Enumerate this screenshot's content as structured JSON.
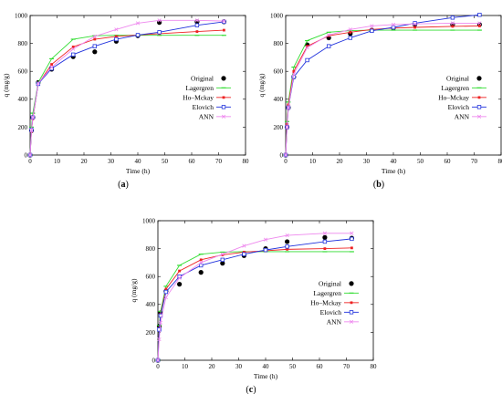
{
  "chart_data": [
    {
      "type": "line",
      "caption": "(a)",
      "xlabel": "Time (h)",
      "ylabel": "q (mg/g)",
      "xlim": [
        0,
        80
      ],
      "ylim": [
        0,
        1000
      ],
      "xticks": [
        0,
        10,
        20,
        30,
        40,
        50,
        60,
        70,
        80
      ],
      "yticks": [
        0,
        200,
        400,
        600,
        800,
        1000
      ],
      "grid": false,
      "legend": "right",
      "series": [
        {
          "name": "Original",
          "style": "points",
          "color": "#000000",
          "x": [
            0,
            0.5,
            1,
            3,
            8,
            16,
            24,
            32,
            40,
            48,
            62,
            72
          ],
          "y": [
            0,
            175,
            270,
            520,
            615,
            705,
            740,
            815,
            855,
            950,
            955,
            955
          ]
        },
        {
          "name": "Lagergren",
          "style": "line",
          "color": "#33dd33",
          "x": [
            0,
            0.5,
            1,
            3,
            8,
            16,
            24,
            32,
            40,
            48,
            62,
            72
          ],
          "y": [
            0,
            200,
            300,
            520,
            690,
            830,
            855,
            858,
            858,
            858,
            858,
            858
          ]
        },
        {
          "name": "Ho–Mckay",
          "style": "line",
          "color": "#ee2222",
          "x": [
            0,
            0.5,
            1,
            3,
            8,
            16,
            24,
            32,
            40,
            48,
            62,
            72
          ],
          "y": [
            0,
            170,
            260,
            510,
            650,
            775,
            830,
            850,
            860,
            870,
            885,
            895
          ]
        },
        {
          "name": "Elovich",
          "style": "line",
          "color": "#2233dd",
          "x": [
            0,
            0.5,
            1,
            3,
            8,
            16,
            24,
            32,
            40,
            48,
            62,
            72
          ],
          "y": [
            0,
            180,
            270,
            510,
            620,
            720,
            780,
            830,
            860,
            880,
            930,
            955
          ]
        },
        {
          "name": "ANN",
          "style": "line",
          "color": "#ee88ee",
          "x": [
            0,
            0.5,
            1,
            3,
            8,
            16,
            24,
            32,
            40,
            48,
            62,
            72
          ],
          "y": [
            0,
            175,
            270,
            515,
            630,
            760,
            850,
            900,
            945,
            965,
            965,
            960
          ]
        }
      ]
    },
    {
      "type": "line",
      "caption": "(b)",
      "xlabel": "Time (h)",
      "ylabel": "q (mg/g)",
      "xlim": [
        0,
        80
      ],
      "ylim": [
        0,
        1000
      ],
      "xticks": [
        0,
        10,
        20,
        30,
        40,
        50,
        60,
        70,
        80
      ],
      "yticks": [
        0,
        200,
        400,
        600,
        800,
        1000
      ],
      "grid": false,
      "legend": "right",
      "series": [
        {
          "name": "Original",
          "style": "points",
          "color": "#000000",
          "x": [
            0,
            0.5,
            1,
            3,
            8,
            16,
            24,
            32,
            40,
            48,
            62,
            72
          ],
          "y": [
            0,
            200,
            340,
            560,
            790,
            840,
            870,
            895,
            910,
            935,
            935,
            935
          ]
        },
        {
          "name": "Lagergren",
          "style": "line",
          "color": "#33dd33",
          "x": [
            0,
            0.5,
            1,
            3,
            8,
            16,
            24,
            32,
            40,
            48,
            62,
            72
          ],
          "y": [
            0,
            240,
            380,
            630,
            820,
            880,
            892,
            895,
            895,
            895,
            895,
            895
          ]
        },
        {
          "name": "Ho–Mckay",
          "style": "line",
          "color": "#ee2222",
          "x": [
            0,
            0.5,
            1,
            3,
            8,
            16,
            24,
            32,
            40,
            48,
            62,
            72
          ],
          "y": [
            0,
            220,
            360,
            600,
            780,
            855,
            880,
            900,
            910,
            915,
            922,
            925
          ]
        },
        {
          "name": "Elovich",
          "style": "line",
          "color": "#2233dd",
          "x": [
            0,
            0.5,
            1,
            3,
            8,
            16,
            24,
            32,
            40,
            48,
            62,
            72
          ],
          "y": [
            0,
            200,
            340,
            560,
            680,
            780,
            840,
            890,
            915,
            945,
            985,
            1005
          ]
        },
        {
          "name": "ANN",
          "style": "line",
          "color": "#ee88ee",
          "x": [
            0,
            0.5,
            1,
            3,
            8,
            16,
            24,
            32,
            40,
            48,
            62,
            72
          ],
          "y": [
            0,
            200,
            340,
            580,
            770,
            860,
            900,
            925,
            935,
            940,
            945,
            945
          ]
        }
      ]
    },
    {
      "type": "line",
      "caption": "(c)",
      "xlabel": "Time (h)",
      "ylabel": "q (mg/g)",
      "xlim": [
        0,
        80
      ],
      "ylim": [
        0,
        1000
      ],
      "xticks": [
        0,
        10,
        20,
        30,
        40,
        50,
        60,
        70,
        80
      ],
      "yticks": [
        0,
        200,
        400,
        600,
        800,
        1000
      ],
      "grid": false,
      "legend": "right",
      "series": [
        {
          "name": "Original",
          "style": "points",
          "color": "#000000",
          "x": [
            0,
            0.5,
            1,
            3,
            8,
            16,
            24,
            32,
            40,
            48,
            62,
            72
          ],
          "y": [
            0,
            245,
            340,
            495,
            545,
            630,
            695,
            750,
            800,
            850,
            880,
            875
          ]
        },
        {
          "name": "Lagergren",
          "style": "line",
          "color": "#33dd33",
          "x": [
            0,
            0.5,
            1,
            3,
            8,
            16,
            24,
            32,
            40,
            48,
            62,
            72
          ],
          "y": [
            0,
            250,
            350,
            530,
            680,
            760,
            775,
            778,
            778,
            778,
            778,
            778
          ]
        },
        {
          "name": "Ho–Mckay",
          "style": "line",
          "color": "#ee2222",
          "x": [
            0,
            0.5,
            1,
            3,
            8,
            16,
            24,
            32,
            40,
            48,
            62,
            72
          ],
          "y": [
            0,
            230,
            330,
            510,
            640,
            720,
            755,
            775,
            785,
            795,
            800,
            805
          ]
        },
        {
          "name": "Elovich",
          "style": "line",
          "color": "#2233dd",
          "x": [
            0,
            0.5,
            1,
            3,
            8,
            16,
            24,
            32,
            40,
            48,
            62,
            72
          ],
          "y": [
            0,
            220,
            320,
            490,
            600,
            680,
            720,
            760,
            790,
            815,
            850,
            870
          ]
        },
        {
          "name": "ANN",
          "style": "line",
          "color": "#ee88ee",
          "x": [
            0,
            0.5,
            1,
            3,
            8,
            16,
            24,
            32,
            40,
            48,
            62,
            72
          ],
          "y": [
            0,
            150,
            270,
            450,
            590,
            700,
            760,
            820,
            865,
            895,
            910,
            910
          ]
        }
      ]
    }
  ]
}
